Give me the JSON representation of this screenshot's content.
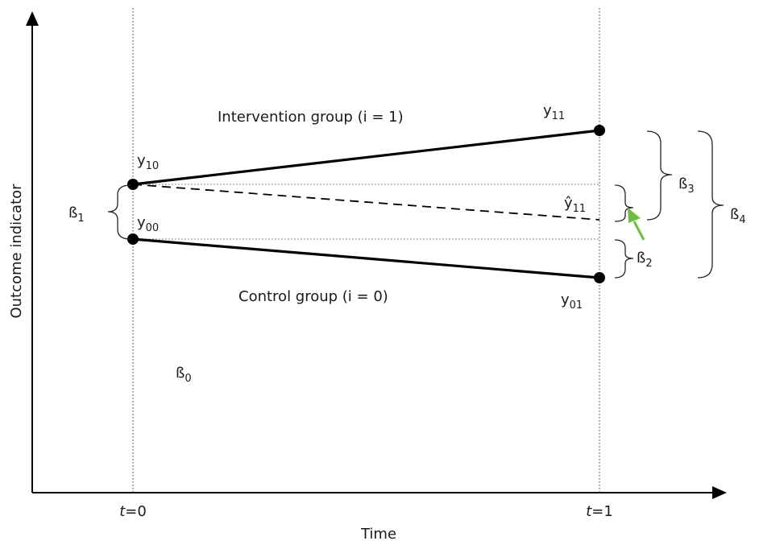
{
  "axes": {
    "y_label": "Outcome indicator",
    "x_label": "Time",
    "ticks": [
      {
        "var": "t",
        "eq": "=",
        "val": "0"
      },
      {
        "var": "t",
        "eq": "=",
        "val": "1"
      }
    ]
  },
  "groups": {
    "intervention": "Intervention group (i = 1)",
    "control": "Control group (i = 0)"
  },
  "points": {
    "y10": {
      "base": "y",
      "sub": "10"
    },
    "y11": {
      "base": "y",
      "sub": "11"
    },
    "y00": {
      "base": "y",
      "sub": "00"
    },
    "y01": {
      "base": "y",
      "sub": "01"
    },
    "yhat11": {
      "base": "ŷ",
      "sub": "11"
    }
  },
  "coefficients": {
    "b0": {
      "base": "ß",
      "sub": "0"
    },
    "b1": {
      "base": "ß",
      "sub": "1"
    },
    "b2": {
      "base": "ß",
      "sub": "2"
    },
    "b3": {
      "base": "ß",
      "sub": "3"
    },
    "b4": {
      "base": "ß",
      "sub": "4"
    }
  },
  "colors": {
    "arrow": "#6fbe44",
    "lines": "#000000"
  }
}
